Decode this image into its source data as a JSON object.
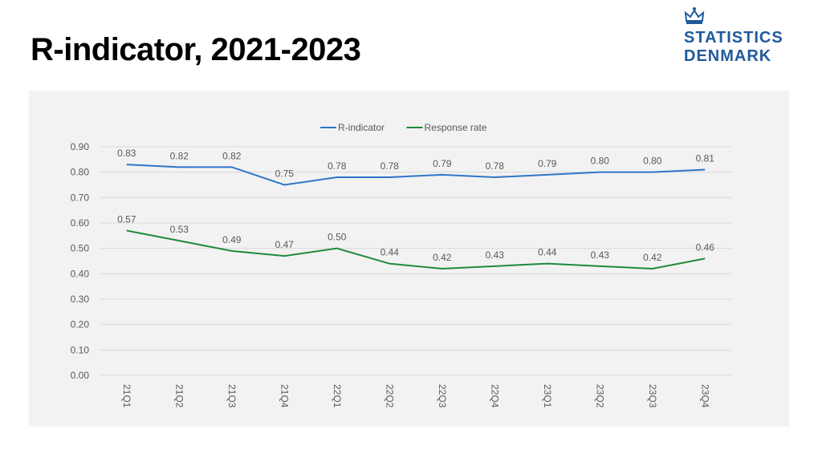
{
  "page": {
    "title": "R-indicator, 2021-2023"
  },
  "logo": {
    "line1": "STATISTICS",
    "line2": "DENMARK",
    "icon": "crown-icon",
    "color": "#1f5a9c"
  },
  "chart_data": {
    "type": "line",
    "title": "",
    "xlabel": "",
    "ylabel": "",
    "categories": [
      "21Q1",
      "21Q2",
      "21Q3",
      "21Q4",
      "22Q1",
      "22Q2",
      "22Q3",
      "22Q4",
      "23Q1",
      "23Q2",
      "23Q3",
      "23Q4"
    ],
    "ylim": [
      0,
      0.9
    ],
    "yticks": [
      "0.00",
      "0.10",
      "0.20",
      "0.30",
      "0.40",
      "0.50",
      "0.60",
      "0.70",
      "0.80",
      "0.90"
    ],
    "grid": true,
    "legend_position": "top-center",
    "series": [
      {
        "name": "R-indicator",
        "color": "#2e75c8",
        "values": [
          0.83,
          0.82,
          0.82,
          0.75,
          0.78,
          0.78,
          0.79,
          0.78,
          0.79,
          0.8,
          0.8,
          0.81
        ],
        "labels": [
          "0.83",
          "0.82",
          "0.82",
          "0.75",
          "0.78",
          "0.78",
          "0.79",
          "0.78",
          "0.79",
          "0.80",
          "0.80",
          "0.81"
        ]
      },
      {
        "name": "Response rate",
        "color": "#1e8a3c",
        "values": [
          0.57,
          0.53,
          0.49,
          0.47,
          0.5,
          0.44,
          0.42,
          0.43,
          0.44,
          0.43,
          0.42,
          0.46
        ],
        "labels": [
          "0.57",
          "0.53",
          "0.49",
          "0.47",
          "0.50",
          "0.44",
          "0.42",
          "0.43",
          "0.44",
          "0.43",
          "0.42",
          "0.46"
        ]
      }
    ]
  }
}
